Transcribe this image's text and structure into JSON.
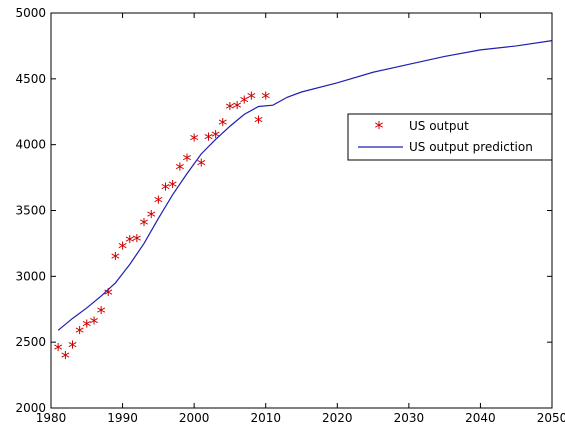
{
  "chart_data": {
    "type": "line",
    "title": "",
    "xlabel": "",
    "ylabel": "",
    "xlim": [
      1980,
      2050
    ],
    "ylim": [
      2000,
      5000
    ],
    "xticks": [
      1980,
      1990,
      2000,
      2010,
      2020,
      2030,
      2040,
      2050
    ],
    "yticks": [
      2000,
      2500,
      3000,
      3500,
      4000,
      4500,
      5000
    ],
    "grid": false,
    "legend_position": "center-right",
    "series": [
      {
        "name": "US output",
        "kind": "scatter",
        "marker": "asterisk",
        "color": "#cc0000",
        "x": [
          1981,
          1982,
          1983,
          1984,
          1985,
          1986,
          1987,
          1988,
          1989,
          1990,
          1991,
          1992,
          1993,
          1994,
          1995,
          1996,
          1997,
          1998,
          1999,
          2000,
          2001,
          2002,
          2003,
          2004,
          2005,
          2006,
          2007,
          2008,
          2009,
          2010
        ],
        "y": [
          2440,
          2380,
          2460,
          2570,
          2620,
          2640,
          2720,
          2860,
          3130,
          3210,
          3260,
          3270,
          3390,
          3450,
          3560,
          3660,
          3680,
          3810,
          3880,
          4030,
          3840,
          4040,
          4060,
          4150,
          4270,
          4280,
          4320,
          4350,
          4170,
          4350
        ]
      },
      {
        "name": "US output prediction",
        "kind": "line",
        "color": "#1f1fb4",
        "x": [
          1981,
          1983,
          1985,
          1987,
          1989,
          1991,
          1993,
          1995,
          1997,
          1999,
          2001,
          2003,
          2005,
          2007,
          2009,
          2011,
          2013,
          2015,
          2020,
          2025,
          2030,
          2035,
          2040,
          2045,
          2050
        ],
        "y": [
          2590,
          2680,
          2760,
          2850,
          2950,
          3090,
          3250,
          3440,
          3620,
          3780,
          3930,
          4040,
          4140,
          4230,
          4290,
          4300,
          4360,
          4400,
          4470,
          4550,
          4610,
          4670,
          4720,
          4750,
          4790
        ]
      }
    ]
  }
}
